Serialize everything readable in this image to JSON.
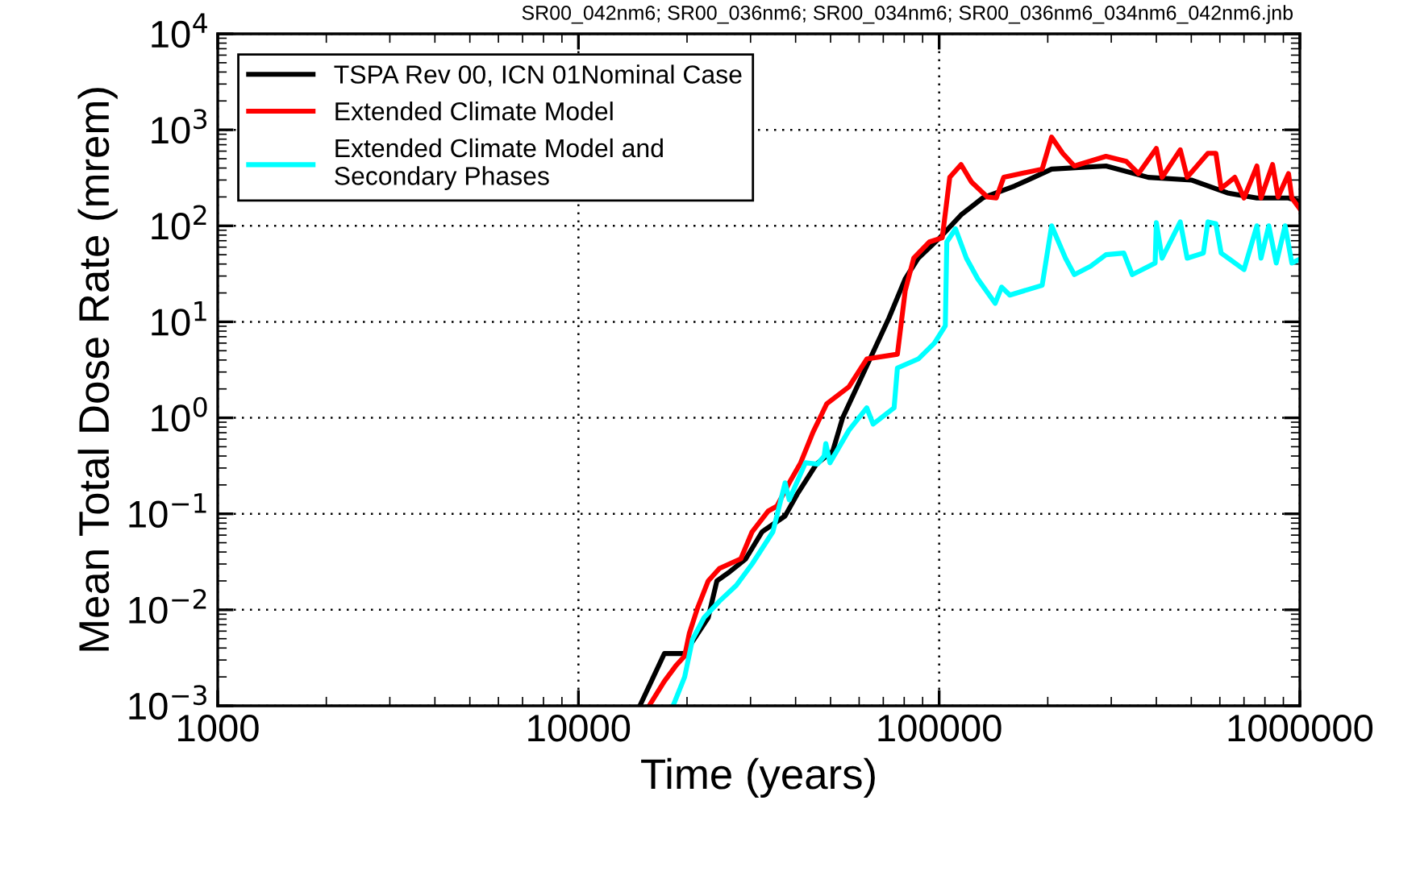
{
  "chart_data": {
    "type": "line",
    "xlabel": "Time (years)",
    "ylabel": "Mean Total Dose Rate (mrem)",
    "log": "xy",
    "grid": true,
    "legend": "top left",
    "line_style": "solid",
    "marker": "none",
    "annotations": [
      "SR00_042nm6; SR00_036nm6; SR00_034nm6; SR00_036nm6_034nm6_042nm6.jnb"
    ],
    "xlim": [
      1000,
      1000000
    ],
    "xticks": [
      1000,
      10000,
      100000,
      1000000
    ],
    "ylim": [
      0.001,
      10000
    ],
    "yticks": [
      {
        "value": 0.001,
        "label": "10$^{−3}$"
      },
      {
        "value": 0.01,
        "label": "10$^{−2}$"
      },
      {
        "value": 0.1,
        "label": "10$^{−1}$"
      },
      {
        "value": 1,
        "label": "10$^{0}$"
      },
      {
        "value": 10,
        "label": "10$^{1}$"
      },
      {
        "value": 100,
        "label": "10$^{2}$"
      },
      {
        "value": 1000,
        "label": "10$^{3}$"
      },
      {
        "value": 10000,
        "label": "10$^{4}$"
      }
    ],
    "series": [
      {
        "name": "TSPA Rev 00, ICN 01Nominal Case",
        "color": "#000000",
        "x": [
          14800,
          17300,
          19700,
          22900,
          24200,
          26300,
          29100,
          32300,
          37400,
          40400,
          45700,
          50700,
          54000,
          64300,
          72600,
          80500,
          87500,
          100000,
          115000,
          132000,
          162000,
          205000,
          290000,
          380000,
          500000,
          630000,
          760000,
          930000,
          1000000
        ],
        "values": [
          0.001,
          0.0035,
          0.0035,
          0.0083,
          0.02,
          0.025,
          0.034,
          0.065,
          0.095,
          0.16,
          0.33,
          0.45,
          1.0,
          4.1,
          11,
          28,
          46,
          74,
          130,
          195,
          260,
          390,
          420,
          320,
          300,
          220,
          195,
          195,
          180
        ]
      },
      {
        "name": "Extended Climate Model",
        "color": "#ff0000",
        "x": [
          15700,
          17300,
          18600,
          19700,
          20300,
          21400,
          22900,
          24600,
          28200,
          30300,
          33600,
          35500,
          38400,
          41300,
          44700,
          48800,
          56200,
          63000,
          76600,
          80500,
          85000,
          94000,
          102000,
          107000,
          115000,
          123000,
          136000,
          144000,
          151000,
          193000,
          205000,
          220000,
          237000,
          290000,
          330000,
          357000,
          400000,
          415000,
          466000,
          487000,
          556000,
          585000,
          605000,
          660000,
          700000,
          760000,
          780000,
          840000,
          870000,
          930000,
          950000,
          1000000
        ],
        "values": [
          0.001,
          0.0018,
          0.0026,
          0.0033,
          0.0057,
          0.0105,
          0.02,
          0.027,
          0.034,
          0.065,
          0.107,
          0.12,
          0.21,
          0.34,
          0.71,
          1.4,
          2.1,
          4.1,
          4.6,
          21,
          46,
          68,
          75,
          320,
          435,
          285,
          200,
          195,
          320,
          390,
          840,
          570,
          420,
          530,
          470,
          350,
          640,
          320,
          620,
          320,
          570,
          570,
          245,
          320,
          195,
          420,
          195,
          435,
          200,
          350,
          195,
          150
        ]
      },
      {
        "name": "Extended Climate Model and\nSecondary Phases",
        "color": "#00ffff",
        "x": [
          18300,
          19700,
          20700,
          22300,
          24600,
          27400,
          30300,
          34600,
          37400,
          38400,
          42600,
          46000,
          48000,
          48500,
          49800,
          56200,
          63000,
          65600,
          75000,
          76600,
          87500,
          97000,
          104000,
          105000,
          111000,
          119000,
          128000,
          143000,
          149000,
          157000,
          193000,
          205000,
          224000,
          237000,
          263000,
          290000,
          325000,
          343000,
          397000,
          400000,
          415000,
          466000,
          487000,
          540000,
          556000,
          585000,
          605000,
          700000,
          760000,
          780000,
          820000,
          860000,
          910000,
          950000,
          1000000
        ],
        "values": [
          0.001,
          0.002,
          0.0049,
          0.0083,
          0.0123,
          0.018,
          0.03,
          0.065,
          0.21,
          0.14,
          0.34,
          0.33,
          0.4,
          0.54,
          0.34,
          0.74,
          1.27,
          0.86,
          1.27,
          3.3,
          4.1,
          6,
          9.1,
          68,
          93,
          46,
          28,
          15.6,
          23,
          19,
          24,
          100,
          46,
          31,
          38,
          50,
          52,
          31,
          41,
          108,
          46,
          110,
          46,
          52,
          110,
          105,
          52,
          35,
          100,
          46,
          100,
          41,
          100,
          41,
          45
        ]
      }
    ]
  }
}
